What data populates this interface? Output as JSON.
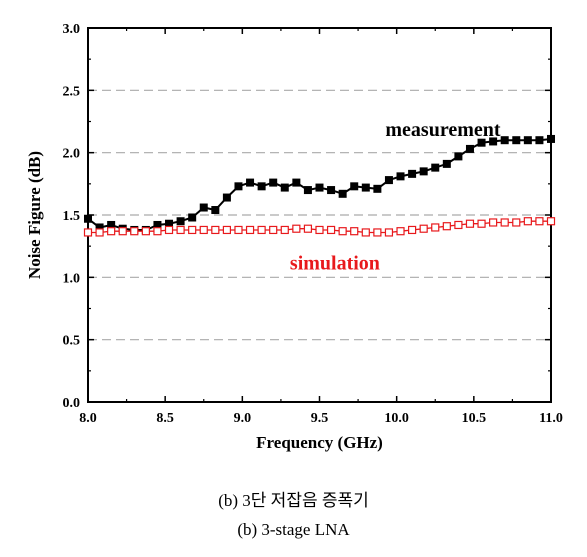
{
  "chart_data": {
    "type": "line",
    "xlabel": "Frequency (GHz)",
    "ylabel": "Noise Figure (dB)",
    "xlim": [
      8.0,
      11.0
    ],
    "ylim": [
      0.0,
      3.0
    ],
    "xticks": [
      "8.0",
      "8.5",
      "9.0",
      "9.5",
      "10.0",
      "10.5",
      "11.0"
    ],
    "yticks": [
      "0.0",
      "0.5",
      "1.0",
      "1.5",
      "2.0",
      "2.5",
      "3.0"
    ],
    "grid": "horizontal-dashed",
    "x": [
      8.0,
      8.075,
      8.15,
      8.225,
      8.3,
      8.375,
      8.45,
      8.525,
      8.6,
      8.675,
      8.75,
      8.825,
      8.9,
      8.975,
      9.05,
      9.125,
      9.2,
      9.275,
      9.35,
      9.425,
      9.5,
      9.575,
      9.65,
      9.725,
      9.8,
      9.875,
      9.95,
      10.025,
      10.1,
      10.175,
      10.25,
      10.325,
      10.4,
      10.475,
      10.55,
      10.625,
      10.7,
      10.775,
      10.85,
      10.925,
      11.0
    ],
    "series": [
      {
        "name": "measurement",
        "color": "#000000",
        "marker": "filled-square",
        "values": [
          1.47,
          1.4,
          1.42,
          1.39,
          1.38,
          1.38,
          1.42,
          1.43,
          1.45,
          1.48,
          1.56,
          1.54,
          1.64,
          1.73,
          1.76,
          1.73,
          1.76,
          1.72,
          1.76,
          1.7,
          1.72,
          1.7,
          1.67,
          1.73,
          1.72,
          1.71,
          1.78,
          1.81,
          1.83,
          1.85,
          1.88,
          1.91,
          1.97,
          2.03,
          2.08,
          2.09,
          2.1,
          2.1,
          2.1,
          2.1,
          2.11
        ]
      },
      {
        "name": "simulation",
        "color": "#e8191c",
        "marker": "open-square",
        "values": [
          1.36,
          1.36,
          1.37,
          1.37,
          1.37,
          1.37,
          1.37,
          1.38,
          1.38,
          1.38,
          1.38,
          1.38,
          1.38,
          1.38,
          1.38,
          1.38,
          1.38,
          1.38,
          1.39,
          1.39,
          1.38,
          1.38,
          1.37,
          1.37,
          1.36,
          1.36,
          1.36,
          1.37,
          1.38,
          1.39,
          1.4,
          1.41,
          1.42,
          1.43,
          1.43,
          1.44,
          1.44,
          1.44,
          1.45,
          1.45,
          1.45
        ]
      }
    ],
    "annotations": [
      {
        "text": "measurement",
        "color": "#000000"
      },
      {
        "text": "simulation",
        "color": "#e8191c"
      }
    ]
  },
  "captions": {
    "korean": "(b) 3단 저잡음 증폭기",
    "english": "(b) 3-stage LNA"
  }
}
